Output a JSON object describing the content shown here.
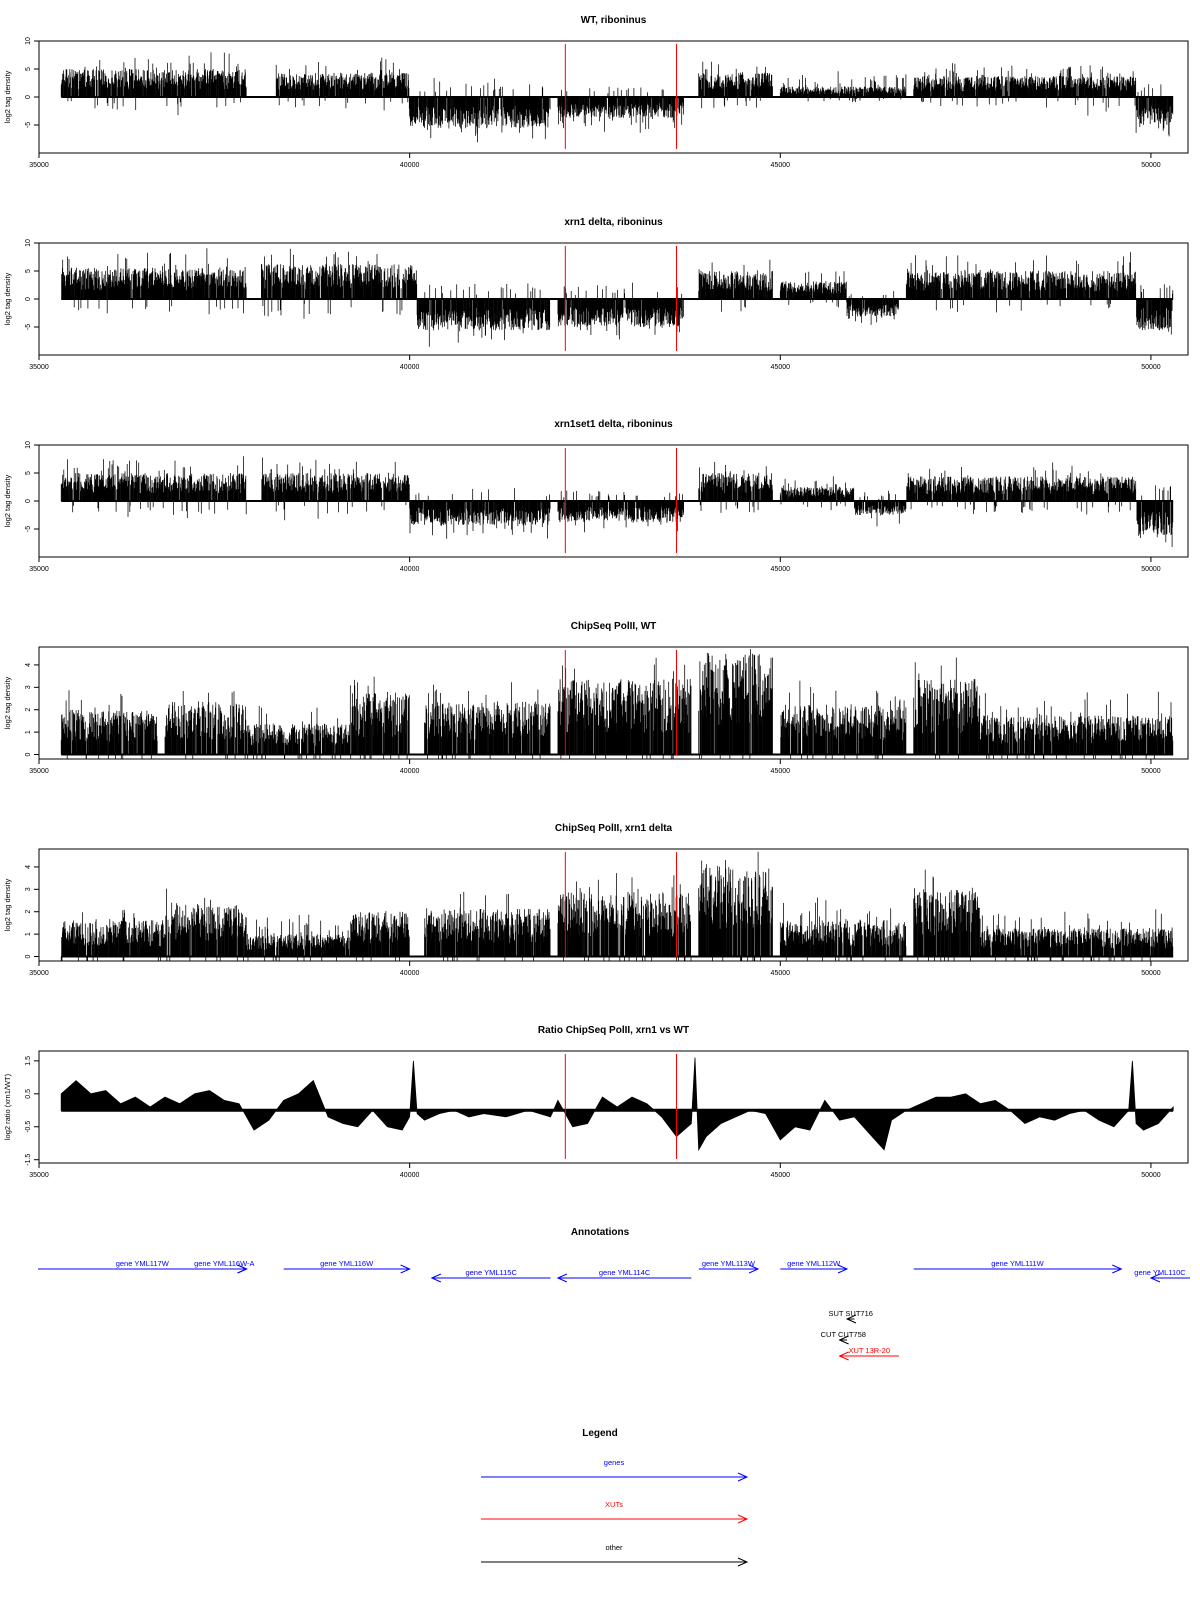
{
  "colors": {
    "gene": "#0000ff",
    "xut": "#ff0000",
    "other": "#000000",
    "marker": "#ff0000",
    "signal": "#000000"
  },
  "chart_data": [
    {
      "type": "bar",
      "title": "WT, riboninus",
      "ylabel": "log2 tag density",
      "xlim": [
        35000,
        50500
      ],
      "ylim": [
        -10,
        10
      ],
      "xticks": [
        35000,
        40000,
        45000,
        50000
      ],
      "yticks": [
        10,
        5,
        0,
        -5
      ],
      "markers": [
        42100,
        43600
      ],
      "profile": [
        {
          "x0": 35300,
          "x1": 37800,
          "sign": 1,
          "level": 4,
          "spread": 2.5
        },
        {
          "x0": 38200,
          "x1": 40000,
          "sign": 1,
          "level": 3.5,
          "spread": 2
        },
        {
          "x0": 40000,
          "x1": 41900,
          "sign": -1,
          "level": 4.5,
          "spread": 2
        },
        {
          "x0": 42000,
          "x1": 43700,
          "sign": -1,
          "level": 3,
          "spread": 2
        },
        {
          "x0": 43900,
          "x1": 44900,
          "sign": 1,
          "level": 3.5,
          "spread": 2
        },
        {
          "x0": 45000,
          "x1": 46700,
          "sign": 1,
          "level": 1.5,
          "spread": 2
        },
        {
          "x0": 46800,
          "x1": 49800,
          "sign": 1,
          "level": 3,
          "spread": 2
        },
        {
          "x0": 49800,
          "x1": 50300,
          "sign": -1,
          "level": 4,
          "spread": 2
        }
      ]
    },
    {
      "type": "bar",
      "title": "xrn1 delta, riboninus",
      "ylabel": "log2 tag density",
      "xlim": [
        35000,
        50500
      ],
      "ylim": [
        -10,
        10
      ],
      "xticks": [
        35000,
        40000,
        45000,
        50000
      ],
      "yticks": [
        10,
        5,
        0,
        -5
      ],
      "markers": [
        42100,
        43600
      ],
      "profile": [
        {
          "x0": 35300,
          "x1": 37800,
          "sign": 1,
          "level": 4.5,
          "spread": 2.5
        },
        {
          "x0": 38000,
          "x1": 40100,
          "sign": 1,
          "level": 5,
          "spread": 2.5
        },
        {
          "x0": 40100,
          "x1": 41900,
          "sign": -1,
          "level": 4.5,
          "spread": 2
        },
        {
          "x0": 42000,
          "x1": 43700,
          "sign": -1,
          "level": 4,
          "spread": 2
        },
        {
          "x0": 43900,
          "x1": 44900,
          "sign": 1,
          "level": 4,
          "spread": 2
        },
        {
          "x0": 45000,
          "x1": 45900,
          "sign": 1,
          "level": 2.5,
          "spread": 2
        },
        {
          "x0": 45900,
          "x1": 46600,
          "sign": -1,
          "level": 2.5,
          "spread": 1.5
        },
        {
          "x0": 46700,
          "x1": 49800,
          "sign": 1,
          "level": 4,
          "spread": 2.5
        },
        {
          "x0": 49800,
          "x1": 50300,
          "sign": -1,
          "level": 4.5,
          "spread": 2
        }
      ]
    },
    {
      "type": "bar",
      "title": "xrn1set1 delta, riboninus",
      "ylabel": "log2 tag density",
      "xlim": [
        35000,
        50500
      ],
      "ylim": [
        -10,
        10
      ],
      "xticks": [
        35000,
        40000,
        45000,
        50000
      ],
      "yticks": [
        10,
        5,
        0,
        -5
      ],
      "markers": [
        42100,
        43600
      ],
      "profile": [
        {
          "x0": 35300,
          "x1": 37800,
          "sign": 1,
          "level": 4,
          "spread": 2.5
        },
        {
          "x0": 38000,
          "x1": 40000,
          "sign": 1,
          "level": 4,
          "spread": 2
        },
        {
          "x0": 40000,
          "x1": 41900,
          "sign": -1,
          "level": 3.5,
          "spread": 2
        },
        {
          "x0": 42000,
          "x1": 43700,
          "sign": -1,
          "level": 3,
          "spread": 2
        },
        {
          "x0": 43900,
          "x1": 44900,
          "sign": 1,
          "level": 4,
          "spread": 2
        },
        {
          "x0": 45000,
          "x1": 46000,
          "sign": 1,
          "level": 2,
          "spread": 1.5
        },
        {
          "x0": 46000,
          "x1": 46700,
          "sign": -1,
          "level": 2,
          "spread": 1.5
        },
        {
          "x0": 46700,
          "x1": 49800,
          "sign": 1,
          "level": 3.5,
          "spread": 2
        },
        {
          "x0": 49800,
          "x1": 50300,
          "sign": -1,
          "level": 5,
          "spread": 2
        }
      ]
    },
    {
      "type": "bar",
      "title": "ChipSeq PolII, WT",
      "ylabel": "log2 tag density",
      "xlim": [
        35000,
        50500
      ],
      "ylim": [
        -0.2,
        4.8
      ],
      "xticks": [
        35000,
        40000,
        45000,
        50000
      ],
      "yticks": [
        4,
        3,
        2,
        1,
        0
      ],
      "markers": [
        42100,
        43600
      ],
      "profile": [
        {
          "x0": 35300,
          "x1": 36600,
          "sign": 1,
          "level": 1.6,
          "spread": 0.8
        },
        {
          "x0": 36700,
          "x1": 37800,
          "sign": 1,
          "level": 1.9,
          "spread": 0.8
        },
        {
          "x0": 37800,
          "x1": 39200,
          "sign": 1,
          "level": 1.1,
          "spread": 0.6
        },
        {
          "x0": 39200,
          "x1": 40000,
          "sign": 1,
          "level": 2.2,
          "spread": 0.9
        },
        {
          "x0": 40200,
          "x1": 41900,
          "sign": 1,
          "level": 1.9,
          "spread": 0.8
        },
        {
          "x0": 42000,
          "x1": 43800,
          "sign": 1,
          "level": 2.7,
          "spread": 0.8
        },
        {
          "x0": 43900,
          "x1": 44900,
          "sign": 1,
          "level": 3.6,
          "spread": 0.8
        },
        {
          "x0": 45000,
          "x1": 46700,
          "sign": 1,
          "level": 1.8,
          "spread": 0.8
        },
        {
          "x0": 46800,
          "x1": 47700,
          "sign": 1,
          "level": 2.7,
          "spread": 0.8
        },
        {
          "x0": 47700,
          "x1": 50300,
          "sign": 1,
          "level": 1.4,
          "spread": 0.8
        }
      ]
    },
    {
      "type": "bar",
      "title": "ChipSeq PolII, xrn1 delta",
      "ylabel": "log2 tag density",
      "xlim": [
        35000,
        50500
      ],
      "ylim": [
        -0.2,
        4.8
      ],
      "xticks": [
        35000,
        40000,
        45000,
        50000
      ],
      "yticks": [
        4,
        3,
        2,
        1,
        0
      ],
      "markers": [
        42100,
        43600
      ],
      "profile": [
        {
          "x0": 35300,
          "x1": 36700,
          "sign": 1,
          "level": 1.3,
          "spread": 0.7
        },
        {
          "x0": 36700,
          "x1": 37800,
          "sign": 1,
          "level": 1.9,
          "spread": 0.6
        },
        {
          "x0": 37800,
          "x1": 39200,
          "sign": 1,
          "level": 0.8,
          "spread": 0.6
        },
        {
          "x0": 39200,
          "x1": 40000,
          "sign": 1,
          "level": 1.6,
          "spread": 0.7
        },
        {
          "x0": 40200,
          "x1": 41900,
          "sign": 1,
          "level": 1.7,
          "spread": 0.8
        },
        {
          "x0": 42000,
          "x1": 43800,
          "sign": 1,
          "level": 2.3,
          "spread": 0.7
        },
        {
          "x0": 43900,
          "x1": 44900,
          "sign": 1,
          "level": 3.3,
          "spread": 0.8
        },
        {
          "x0": 45000,
          "x1": 46700,
          "sign": 1,
          "level": 1.3,
          "spread": 0.7
        },
        {
          "x0": 46800,
          "x1": 47700,
          "sign": 1,
          "level": 2.5,
          "spread": 0.7
        },
        {
          "x0": 47700,
          "x1": 50300,
          "sign": 1,
          "level": 1.0,
          "spread": 0.7
        }
      ]
    },
    {
      "type": "area",
      "title": "Ratio ChipSeq PolII, xrn1 vs WT",
      "ylabel": "log2 ratio (xrn1/WT)",
      "xlim": [
        35000,
        50500
      ],
      "ylim": [
        -1.6,
        1.8
      ],
      "xticks": [
        35000,
        40000,
        45000,
        50000
      ],
      "yticks": [
        1.5,
        0.5,
        -0.5,
        -1.5
      ],
      "markers": [
        42100,
        43600
      ],
      "x": [
        35300,
        35500,
        35700,
        35900,
        36100,
        36300,
        36500,
        36700,
        36900,
        37100,
        37300,
        37500,
        37700,
        37900,
        38100,
        38300,
        38500,
        38700,
        38900,
        39100,
        39300,
        39500,
        39700,
        39900,
        40000,
        40050,
        40100,
        40200,
        40400,
        40600,
        40800,
        41000,
        41300,
        41600,
        41900,
        42000,
        42200,
        42400,
        42600,
        42800,
        43000,
        43200,
        43400,
        43600,
        43700,
        43800,
        43850,
        43900,
        44000,
        44200,
        44400,
        44600,
        44800,
        45000,
        45200,
        45400,
        45600,
        45800,
        46000,
        46200,
        46400,
        46500,
        46700,
        46900,
        47100,
        47300,
        47500,
        47700,
        47900,
        48100,
        48300,
        48500,
        48700,
        48900,
        49100,
        49300,
        49500,
        49700,
        49750,
        49800,
        49900,
        50100,
        50300
      ],
      "values": [
        0.5,
        0.9,
        0.5,
        0.6,
        0.2,
        0.4,
        0.1,
        0.4,
        0.2,
        0.5,
        0.6,
        0.3,
        0.2,
        -0.6,
        -0.3,
        0.3,
        0.5,
        0.9,
        -0.2,
        -0.4,
        -0.5,
        0.0,
        -0.5,
        -0.6,
        -0.2,
        1.5,
        -0.1,
        -0.3,
        -0.1,
        0.0,
        -0.2,
        -0.1,
        -0.2,
        0.0,
        -0.2,
        0.3,
        -0.5,
        -0.4,
        0.4,
        0.1,
        0.4,
        0.2,
        -0.2,
        -0.8,
        -0.6,
        -0.4,
        1.6,
        -1.2,
        -0.8,
        -0.4,
        -0.2,
        0.0,
        -0.1,
        -0.9,
        -0.5,
        -0.6,
        0.3,
        -0.3,
        -0.2,
        -0.7,
        -1.2,
        -0.3,
        0.0,
        0.2,
        0.4,
        0.4,
        0.5,
        0.2,
        0.3,
        0.0,
        -0.4,
        -0.2,
        -0.3,
        -0.1,
        0.0,
        -0.3,
        -0.5,
        0.0,
        1.5,
        -0.4,
        -0.6,
        -0.4,
        0.1
      ]
    }
  ],
  "annotations": {
    "title": "Annotations",
    "features": [
      {
        "label": "gene YML117W",
        "type": "gene",
        "start": 34600,
        "end": 37800,
        "strand": "+",
        "row": 0
      },
      {
        "label": "gene YML116W-A",
        "type": "gene",
        "start": 37200,
        "end": 37800,
        "strand": "+",
        "row": 0
      },
      {
        "label": "gene YML116W",
        "type": "gene",
        "start": 38300,
        "end": 40000,
        "strand": "+",
        "row": 0
      },
      {
        "label": "gene YML115C",
        "type": "gene",
        "start": 40300,
        "end": 41900,
        "strand": "-",
        "row": 1
      },
      {
        "label": "gene YML114C",
        "type": "gene",
        "start": 42000,
        "end": 43800,
        "strand": "-",
        "row": 1
      },
      {
        "label": "gene YML113W",
        "type": "gene",
        "start": 43900,
        "end": 44700,
        "strand": "+",
        "row": 0
      },
      {
        "label": "gene YML112W",
        "type": "gene",
        "start": 45000,
        "end": 45900,
        "strand": "+",
        "row": 0
      },
      {
        "label": "gene YML111W",
        "type": "gene",
        "start": 46800,
        "end": 49600,
        "strand": "+",
        "row": 0
      },
      {
        "label": "gene YML110C",
        "type": "gene",
        "start": 50000,
        "end": 50900,
        "strand": "-",
        "row": 1
      },
      {
        "label": "SUT SUT716",
        "type": "other",
        "start": 45900,
        "end": 46000,
        "strand": "-",
        "row": 2
      },
      {
        "label": "CUT CUT758",
        "type": "other",
        "start": 45800,
        "end": 45900,
        "strand": "-",
        "row": 3
      },
      {
        "label": "XUT 13R-20",
        "type": "xut",
        "start": 45800,
        "end": 46600,
        "strand": "-",
        "row": 4
      }
    ]
  },
  "legend": {
    "title": "Legend",
    "items": [
      {
        "label": "genes",
        "type": "gene"
      },
      {
        "label": "XUTs",
        "type": "xut"
      },
      {
        "label": "other",
        "type": "other"
      }
    ]
  }
}
